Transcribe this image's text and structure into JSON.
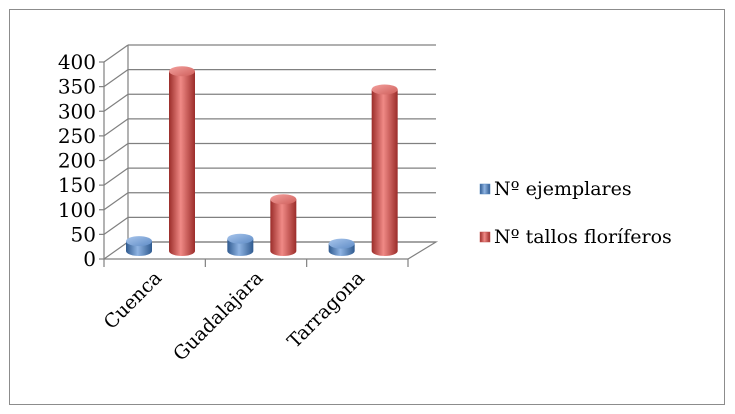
{
  "chart_data": {
    "type": "bar",
    "style": "3d-cylinder",
    "categories": [
      "Cuenca",
      "Guadalajara",
      "Tarragona"
    ],
    "series": [
      {
        "name": "Nº ejemplares",
        "values": [
          20,
          25,
          15
        ],
        "color": "#4f81bd"
      },
      {
        "name": "Nº tallos floríferos",
        "values": [
          365,
          105,
          328
        ],
        "color": "#c0504d"
      }
    ],
    "yticks": [
      "0",
      "50",
      "100",
      "150",
      "200",
      "250",
      "300",
      "350",
      "400"
    ],
    "ylim": [
      0,
      400
    ],
    "grid": true,
    "legend_position": "right"
  }
}
